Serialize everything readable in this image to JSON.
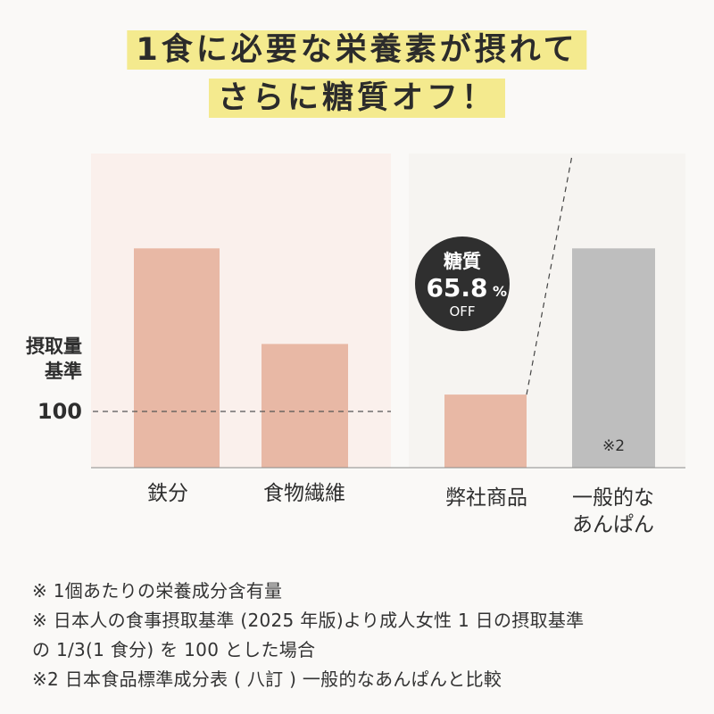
{
  "headline": {
    "line1": "1食に必要な栄養素が摂れて",
    "line2": "さらに糖質オフ！"
  },
  "chart_data": {
    "type": "bar",
    "categories": [
      "鉄分",
      "食物繊維",
      "弊社商品",
      "一般的な\nあんぱん"
    ],
    "category_lines": [
      [
        "鉄分"
      ],
      [
        "食物繊維"
      ],
      [
        "弊社商品"
      ],
      [
        "一般的な",
        "あんぱん"
      ]
    ],
    "values": [
      390,
      220,
      130,
      390
    ],
    "ylabel": "摂取量\n基準",
    "ylabel_lines": [
      "摂取量",
      "基準"
    ],
    "reference_line": {
      "value": 100,
      "label": "100"
    },
    "badge": {
      "title": "糖質",
      "value": "65.8",
      "unit": "%",
      "sub": "OFF"
    },
    "bar_note": "※2",
    "colors": {
      "bar": "#e8b8a5",
      "comparison_bar": "#bebebe",
      "panel_left": "#faf0ec",
      "panel_right": "#f6f4f1",
      "badge": "#2f2f2f"
    }
  },
  "footnotes": [
    "※ 1個あたりの栄養成分含有量",
    "※ 日本人の食事摂取基準 (2025 年版)より成人女性 1 日の摂取基準",
    "の 1/3(1 食分) を 100 とした場合",
    "※2 日本食品標準成分表 ( 八訂 ) 一般的なあんぱんと比較"
  ]
}
